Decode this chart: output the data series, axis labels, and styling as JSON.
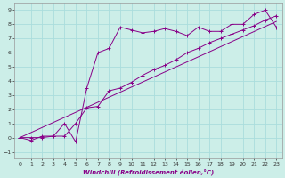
{
  "xlabel": "Windchill (Refroidissement éolien,°C)",
  "background_color": "#cceee8",
  "grid_color": "#aadddd",
  "line_color": "#880088",
  "xlim": [
    -0.5,
    23.5
  ],
  "ylim": [
    -1.5,
    9.5
  ],
  "xticks": [
    0,
    1,
    2,
    3,
    4,
    5,
    6,
    7,
    8,
    9,
    10,
    11,
    12,
    13,
    14,
    15,
    16,
    17,
    18,
    19,
    20,
    21,
    22,
    23
  ],
  "yticks": [
    -1,
    0,
    1,
    2,
    3,
    4,
    5,
    6,
    7,
    8,
    9
  ],
  "line1_x": [
    0,
    1,
    2,
    3,
    4,
    5,
    6,
    7,
    8,
    9,
    10,
    11,
    12,
    13,
    14,
    15,
    16,
    17,
    18,
    19,
    20,
    21,
    22,
    23
  ],
  "line1_y": [
    0,
    -0.2,
    0.1,
    0.1,
    1.0,
    -0.3,
    3.5,
    6.0,
    6.3,
    7.8,
    7.6,
    7.4,
    7.5,
    7.7,
    7.5,
    7.2,
    7.8,
    7.5,
    7.5,
    8.0,
    8.0,
    8.7,
    9.0,
    7.8
  ],
  "line2_x": [
    0,
    1,
    2,
    3,
    4,
    5,
    6,
    7,
    8,
    9,
    10,
    11,
    12,
    13,
    14,
    15,
    16,
    17,
    18,
    19,
    20,
    21,
    22,
    23
  ],
  "line2_y": [
    0,
    0.0,
    0.0,
    0.1,
    0.1,
    1.0,
    2.1,
    2.2,
    3.3,
    3.5,
    3.9,
    4.4,
    4.8,
    5.1,
    5.5,
    6.0,
    6.3,
    6.7,
    7.0,
    7.3,
    7.6,
    7.9,
    8.3,
    8.6
  ],
  "line3_x": [
    0,
    23
  ],
  "line3_y": [
    0,
    8.2
  ]
}
